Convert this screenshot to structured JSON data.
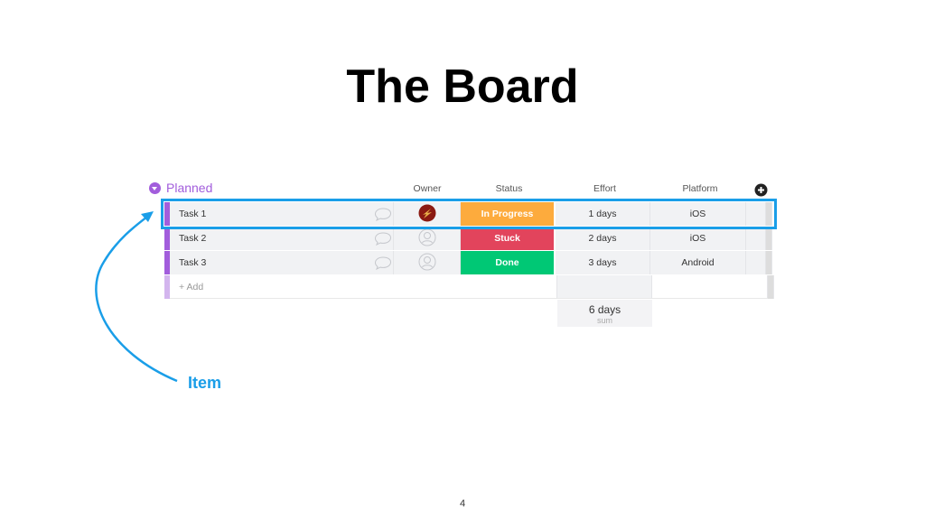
{
  "slide": {
    "title": "The Board",
    "page_number": "4",
    "annotation": "Item",
    "accent": "#1a9ee8"
  },
  "board": {
    "group": {
      "name": "Planned",
      "color": "#a25ddc"
    },
    "columns": {
      "owner": "Owner",
      "status": "Status",
      "effort": "Effort",
      "platform": "Platform"
    },
    "add_column_icon": "plus-circle-icon",
    "items": [
      {
        "name": "Task 1",
        "owner": "avatar",
        "status": "In Progress",
        "status_color": "#fdab3d",
        "effort": "1 days",
        "platform": "iOS"
      },
      {
        "name": "Task 2",
        "owner": "empty",
        "status": "Stuck",
        "status_color": "#e2445c",
        "effort": "2 days",
        "platform": "iOS"
      },
      {
        "name": "Task 3",
        "owner": "empty",
        "status": "Done",
        "status_color": "#00c875",
        "effort": "3 days",
        "platform": "Android"
      }
    ],
    "add_label": "+ Add",
    "summary": {
      "value": "6 days",
      "label": "sum"
    }
  }
}
